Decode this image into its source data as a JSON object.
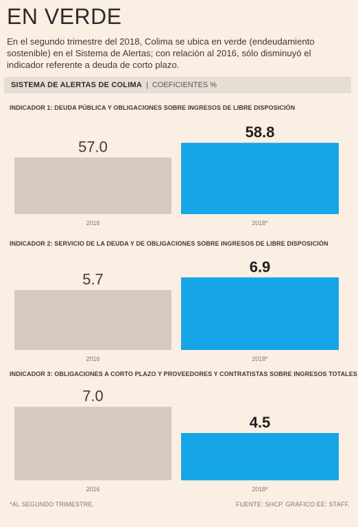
{
  "header": {
    "title": "EN VERDE",
    "subtitle": "En el segundo trimestre del 2018, Colima se ubica en verde (endeudamiento sostenible) en el Sistema de Alertas; con relación al 2016, sólo disminuyó el indicador referente a deuda de corto plazo."
  },
  "section": {
    "title": "SISTEMA DE ALERTAS DE COLIMA",
    "separator": "|",
    "subtitle": "COEFICIENTES %"
  },
  "colors": {
    "bar_2016": "#d6cbbf",
    "bar_2018": "#16a6e8",
    "background": "#fbeee2"
  },
  "chart_data": [
    {
      "type": "bar",
      "title": "INDICADOR 1: DEUDA PÚBLICA Y OBLIGACIONES SOBRE INGRESOS DE LIBRE DISPOSICIÓN",
      "categories": [
        "2016",
        "2018*"
      ],
      "values": [
        57.0,
        58.8
      ],
      "labels": [
        "57.0",
        "58.8"
      ],
      "ylim": [
        50,
        60
      ]
    },
    {
      "type": "bar",
      "title": "INDICADOR 2: SERVICIO DE LA DEUDA Y DE OBLIGACIONES SOBRE INGRESOS DE LIBRE DISPOSICIÓN",
      "categories": [
        "2016",
        "2018*"
      ],
      "values": [
        5.7,
        6.9
      ],
      "labels": [
        "5.7",
        "6.9"
      ],
      "ylim": [
        0,
        7.7
      ]
    },
    {
      "type": "bar",
      "title": "INDICADOR 3: OBLIGACIONES A CORTO PLAZO Y PROVEEDORES Y CONTRATISTAS SOBRE INGRESOS TOTALES",
      "categories": [
        "2016",
        "2018*"
      ],
      "values": [
        7.0,
        4.5
      ],
      "labels": [
        "7.0",
        "4.5"
      ],
      "ylim": [
        0,
        7.7
      ]
    }
  ],
  "footer": {
    "note": "*AL SEGUNDO TRIMESTRE.",
    "source": "FUENTE: SHCP. GRÁFICO EE: STAFF."
  }
}
